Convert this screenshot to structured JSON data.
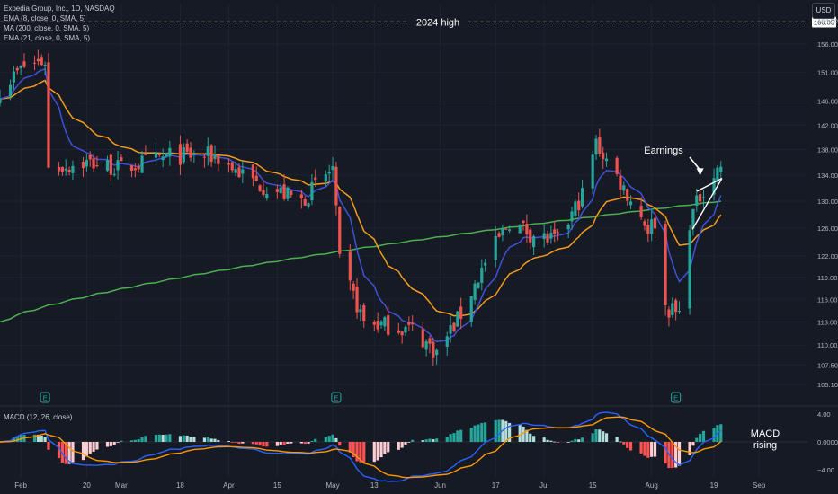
{
  "legend": {
    "title": "Expedia Group, Inc., 1D, NASDAQ",
    "ema8": "EMA (8, close, 0, SMA, 5)",
    "ma200": "MA (200, close, 0, SMA, 5)",
    "ema21": "EMA (21, close, 0, SMA, 5)",
    "macd": "MACD (12, 26, close)"
  },
  "currency_button": "USD",
  "colors": {
    "background": "#161a25",
    "up": "#26a69a",
    "down": "#ef5350",
    "ema8": "#3f51d8",
    "ema21": "#f39c19",
    "ma200": "#4caf50",
    "macd_line": "#2962ff",
    "signal_line": "#ff9800",
    "annotation": "#ffffff"
  },
  "chart_data": [
    {
      "type": "candlestick",
      "title": "Expedia Group, Inc., 1D, NASDAQ",
      "xlabel": "",
      "ylabel": "",
      "x_ticks": [
        "Feb",
        "20",
        "Mar",
        "18",
        "Apr",
        "15",
        "May",
        "13",
        "Jun",
        "17",
        "Jul",
        "15",
        "Aug",
        "19",
        "Sep"
      ],
      "y_ticks": [
        105.1,
        107.5,
        110,
        113,
        116,
        119,
        122,
        126,
        130,
        134,
        138,
        142,
        146,
        151,
        156,
        160.05
      ],
      "y_tick_labels": [
        "105.10",
        "107.50",
        "110.00",
        "113.00",
        "116.00",
        "119.00",
        "122.00",
        "126.00",
        "130.00",
        "134.00",
        "138.00",
        "142.00",
        "146.00",
        "151.00",
        "156.00",
        "160.05"
      ],
      "y_top_partial_label": "164.00",
      "ylim": [
        102.5,
        163.5
      ],
      "log_scale": true,
      "grid": true,
      "anchor_closes": [
        {
          "date": "2024-01-26",
          "close": 148
        },
        {
          "date": "2024-02-02",
          "close": 152
        },
        {
          "date": "2024-02-08",
          "close": 153
        },
        {
          "date": "2024-02-09",
          "close": 135
        },
        {
          "date": "2024-02-20",
          "close": 136
        },
        {
          "date": "2024-03-01",
          "close": 135
        },
        {
          "date": "2024-03-15",
          "close": 137
        },
        {
          "date": "2024-03-28",
          "close": 137
        },
        {
          "date": "2024-04-08",
          "close": 133
        },
        {
          "date": "2024-04-22",
          "close": 130
        },
        {
          "date": "2024-05-01",
          "close": 135
        },
        {
          "date": "2024-05-03",
          "close": 121
        },
        {
          "date": "2024-05-10",
          "close": 113
        },
        {
          "date": "2024-05-24",
          "close": 112
        },
        {
          "date": "2024-05-31",
          "close": 109
        },
        {
          "date": "2024-06-07",
          "close": 114
        },
        {
          "date": "2024-06-14",
          "close": 121
        },
        {
          "date": "2024-06-21",
          "close": 127
        },
        {
          "date": "2024-06-28",
          "close": 125
        },
        {
          "date": "2024-07-05",
          "close": 124
        },
        {
          "date": "2024-07-12",
          "close": 131
        },
        {
          "date": "2024-07-16",
          "close": 139
        },
        {
          "date": "2024-07-24",
          "close": 132
        },
        {
          "date": "2024-07-31",
          "close": 126
        },
        {
          "date": "2024-08-02",
          "close": 127
        },
        {
          "date": "2024-08-05",
          "close": 115
        },
        {
          "date": "2024-08-09",
          "close": 114
        },
        {
          "date": "2024-08-12",
          "close": 127
        },
        {
          "date": "2024-08-16",
          "close": 132
        },
        {
          "date": "2024-08-21",
          "close": 135.5
        }
      ],
      "series": [
        {
          "name": "EMA (8, close, 0, SMA, 5)",
          "style": "line"
        },
        {
          "name": "MA (200, close, 0, SMA, 5)",
          "style": "line"
        },
        {
          "name": "EMA (21, close, 0, SMA, 5)",
          "style": "line"
        }
      ],
      "horizontal_line": {
        "value": 160.05,
        "label": "2024 high"
      },
      "annotations": [
        {
          "text": "Earnings",
          "points_to_date": "2024-08-15",
          "points_to_value": 132
        },
        {
          "text": "triangle",
          "from_date": "2024-08-12",
          "from_value": 127,
          "to_date": "2024-08-20",
          "to_value": 133.5
        }
      ],
      "earnings_markers": {
        "label": "E",
        "dates": [
          "2024-02-08",
          "2024-05-02",
          "2024-08-08"
        ]
      }
    },
    {
      "type": "macd",
      "title": "MACD (12, 26, close)",
      "y_ticks": [
        4,
        0,
        -4
      ],
      "y_tick_labels": [
        "4.00",
        "0.0000",
        "−4.00"
      ],
      "ylim": [
        -5.2,
        5.2
      ],
      "series": [
        {
          "name": "MACD",
          "style": "line"
        },
        {
          "name": "Signal",
          "style": "line"
        },
        {
          "name": "Histogram",
          "style": "bars"
        }
      ],
      "annotation": {
        "text": "MACD\nrising"
      }
    }
  ]
}
